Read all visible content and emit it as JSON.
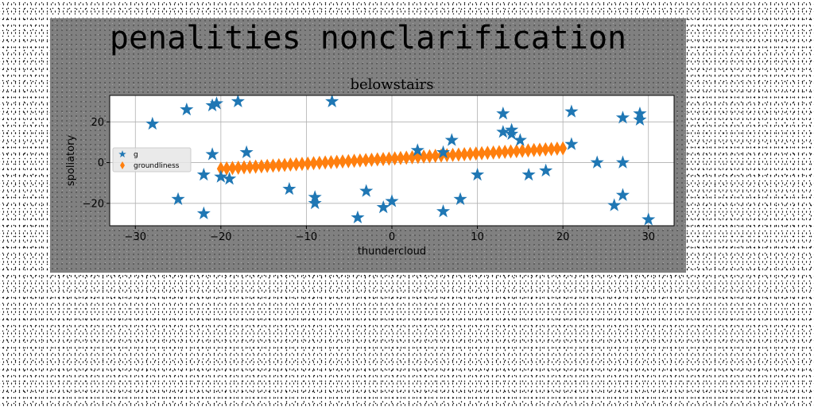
{
  "figure": {
    "suptitle": "penalities nonclarification"
  },
  "colors": {
    "figure_background": "#808080",
    "plot_background": "#ffffff",
    "series_g": "#1f77b4",
    "series_groundliness": "#ff7f0e",
    "grid": "#b0b0b0"
  },
  "chart_data": {
    "type": "scatter",
    "title": "belowstairs",
    "xlabel": "thundercloud",
    "ylabel": "spoliatory",
    "xlim": [
      -33,
      33
    ],
    "ylim": [
      -31,
      33
    ],
    "xticks": [
      -30,
      -20,
      -10,
      0,
      10,
      20,
      30
    ],
    "yticks": [
      -20,
      0,
      20
    ],
    "xtick_labels": [
      "−30",
      "−20",
      "−10",
      "0",
      "10",
      "20",
      "30"
    ],
    "ytick_labels": [
      "−20",
      "0",
      "20"
    ],
    "grid": true,
    "legend_position": "center-left",
    "series": [
      {
        "name": "g",
        "marker": "star",
        "color": "#1f77b4",
        "points": [
          [
            -28,
            19
          ],
          [
            -25,
            -18
          ],
          [
            -24,
            26
          ],
          [
            -22,
            -25
          ],
          [
            -22,
            -6
          ],
          [
            -21,
            28
          ],
          [
            -21,
            4
          ],
          [
            -20.5,
            29
          ],
          [
            -20,
            -7
          ],
          [
            -19,
            -8
          ],
          [
            -18,
            30
          ],
          [
            -17,
            5
          ],
          [
            -12,
            -13
          ],
          [
            -9,
            -17
          ],
          [
            -9,
            -20
          ],
          [
            -7,
            30
          ],
          [
            -4,
            -27
          ],
          [
            -3,
            -14
          ],
          [
            -1,
            -22
          ],
          [
            0,
            -19
          ],
          [
            3,
            6
          ],
          [
            6,
            -24
          ],
          [
            6,
            5
          ],
          [
            7,
            11
          ],
          [
            8,
            -18
          ],
          [
            10,
            -6
          ],
          [
            13,
            24
          ],
          [
            13,
            15
          ],
          [
            14,
            16
          ],
          [
            14,
            14
          ],
          [
            15,
            11
          ],
          [
            16,
            -6
          ],
          [
            18,
            -4
          ],
          [
            21,
            25
          ],
          [
            21,
            9
          ],
          [
            24,
            0
          ],
          [
            26,
            -21
          ],
          [
            27,
            22
          ],
          [
            27,
            0
          ],
          [
            27,
            -16
          ],
          [
            29,
            24
          ],
          [
            29,
            21
          ],
          [
            30,
            -28
          ]
        ]
      },
      {
        "name": "groundliness",
        "marker": "thin_diamond",
        "color": "#ff7f0e",
        "x_start": -20,
        "x_end": 20,
        "y_start": -3,
        "y_end": 7,
        "count": 60
      }
    ]
  }
}
